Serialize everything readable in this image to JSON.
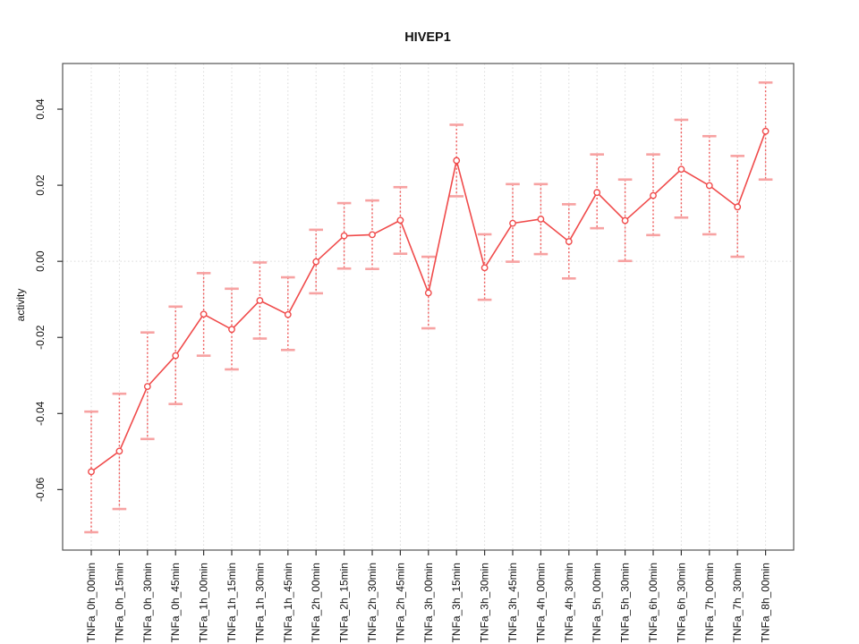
{
  "figure": {
    "title": "HIVEP1"
  },
  "chart_data": {
    "type": "line",
    "title": "HIVEP1",
    "xlabel": "",
    "ylabel": "activity",
    "legend": null,
    "marker": "open-circle",
    "error_bars": true,
    "x_tick_rotation": -90,
    "categories": [
      "TNFa_0h_00min",
      "TNFa_0h_15min",
      "TNFa_0h_30min",
      "TNFa_0h_45min",
      "TNFa_1h_00min",
      "TNFa_1h_15min",
      "TNFa_1h_30min",
      "TNFa_1h_45min",
      "TNFa_2h_00min",
      "TNFa_2h_15min",
      "TNFa_2h_30min",
      "TNFa_2h_45min",
      "TNFa_3h_00min",
      "TNFa_3h_15min",
      "TNFa_3h_30min",
      "TNFa_3h_45min",
      "TNFa_4h_00min",
      "TNFa_4h_30min",
      "TNFa_5h_00min",
      "TNFa_5h_30min",
      "TNFa_6h_00min",
      "TNFa_6h_30min",
      "TNFa_7h_00min",
      "TNFa_7h_30min",
      "TNFa_8h_00min"
    ],
    "series": [
      {
        "name": "HIVEP1 activity",
        "values": [
          -0.0553,
          -0.0499,
          -0.0329,
          -0.0248,
          -0.0139,
          -0.0179,
          -0.0103,
          -0.014,
          -0.0001,
          0.0067,
          0.007,
          0.0108,
          -0.0083,
          0.0265,
          -0.0017,
          0.01,
          0.0111,
          0.0052,
          0.0181,
          0.0107,
          0.0173,
          0.0242,
          0.0199,
          0.0143,
          0.0342
        ],
        "lower": [
          -0.0712,
          -0.0651,
          -0.0467,
          -0.0375,
          -0.0248,
          -0.0284,
          -0.0203,
          -0.0233,
          -0.0084,
          -0.0019,
          -0.002,
          0.002,
          -0.0176,
          0.0171,
          -0.0101,
          -0.0001,
          0.0019,
          -0.0045,
          0.0087,
          0.0001,
          0.0069,
          0.0115,
          0.0071,
          0.0012,
          0.0215
        ],
        "upper": [
          -0.0395,
          -0.0348,
          -0.0187,
          -0.0119,
          -0.0031,
          -0.0072,
          -0.0003,
          -0.0042,
          0.0083,
          0.0153,
          0.016,
          0.0195,
          0.0012,
          0.0359,
          0.0071,
          0.0203,
          0.0203,
          0.015,
          0.0281,
          0.0215,
          0.0281,
          0.0372,
          0.0329,
          0.0277,
          0.047
        ]
      }
    ],
    "ylim": [
      -0.0759,
      0.052
    ],
    "yticks": [
      0.04,
      0.02,
      0,
      -0.02,
      -0.04,
      -0.06
    ],
    "ytick_labels": [
      "0.04",
      "0.02",
      "0.00",
      "-0.02",
      "-0.04",
      "-0.06"
    ],
    "grid": {
      "vertical": "dotted-at-each-category",
      "horizontal_at": 0
    },
    "colors": {
      "series": "#f04b4b",
      "error_bar": "#ef5c5c",
      "error_cap": "#f7a2a2",
      "grid": "#d9d9d9",
      "frame": "#555555",
      "tick": "#333333",
      "text": "#111111",
      "background": "#ffffff"
    }
  }
}
